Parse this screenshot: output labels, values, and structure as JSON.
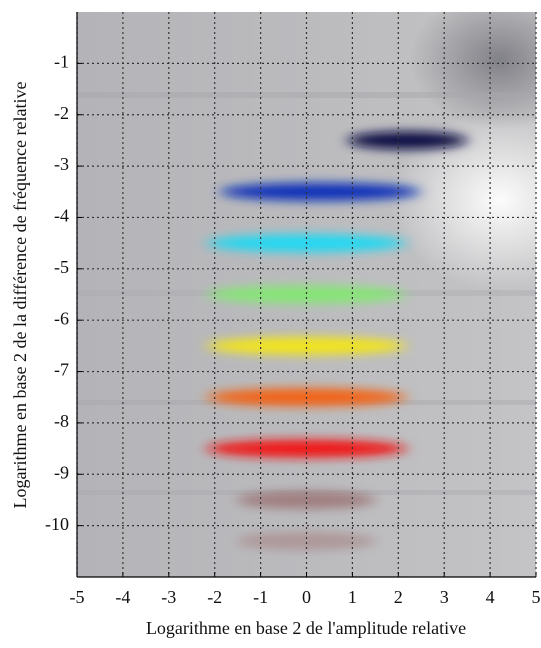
{
  "chart_data": {
    "type": "blobs",
    "xlabel": "Logarithme en base 2 de l'amplitude relative",
    "ylabel": "Logarithme en base 2 de la différence de fréquence relative",
    "x": [
      2.2,
      0.3,
      0,
      0,
      0,
      0,
      0,
      0,
      0
    ],
    "y": [
      -2.5,
      -3.5,
      -4.5,
      -5.5,
      -6.5,
      -7.5,
      -8.5,
      -9.5,
      -10.3
    ],
    "colors": [
      "#0a1045",
      "#0b33b8",
      "#22d8f2",
      "#86e676",
      "#f2e41e",
      "#f26412",
      "#f01212",
      "#8e5656",
      "#a48080"
    ],
    "xlim": [
      -5,
      5
    ],
    "ylim": [
      -11,
      0
    ],
    "xticks": [
      -5,
      -4,
      -3,
      -2,
      -1,
      0,
      1,
      2,
      3,
      4,
      5
    ],
    "yticks": [
      -1,
      -2,
      -3,
      -4,
      -5,
      -6,
      -7,
      -8,
      -9,
      -10
    ],
    "grid": true
  }
}
